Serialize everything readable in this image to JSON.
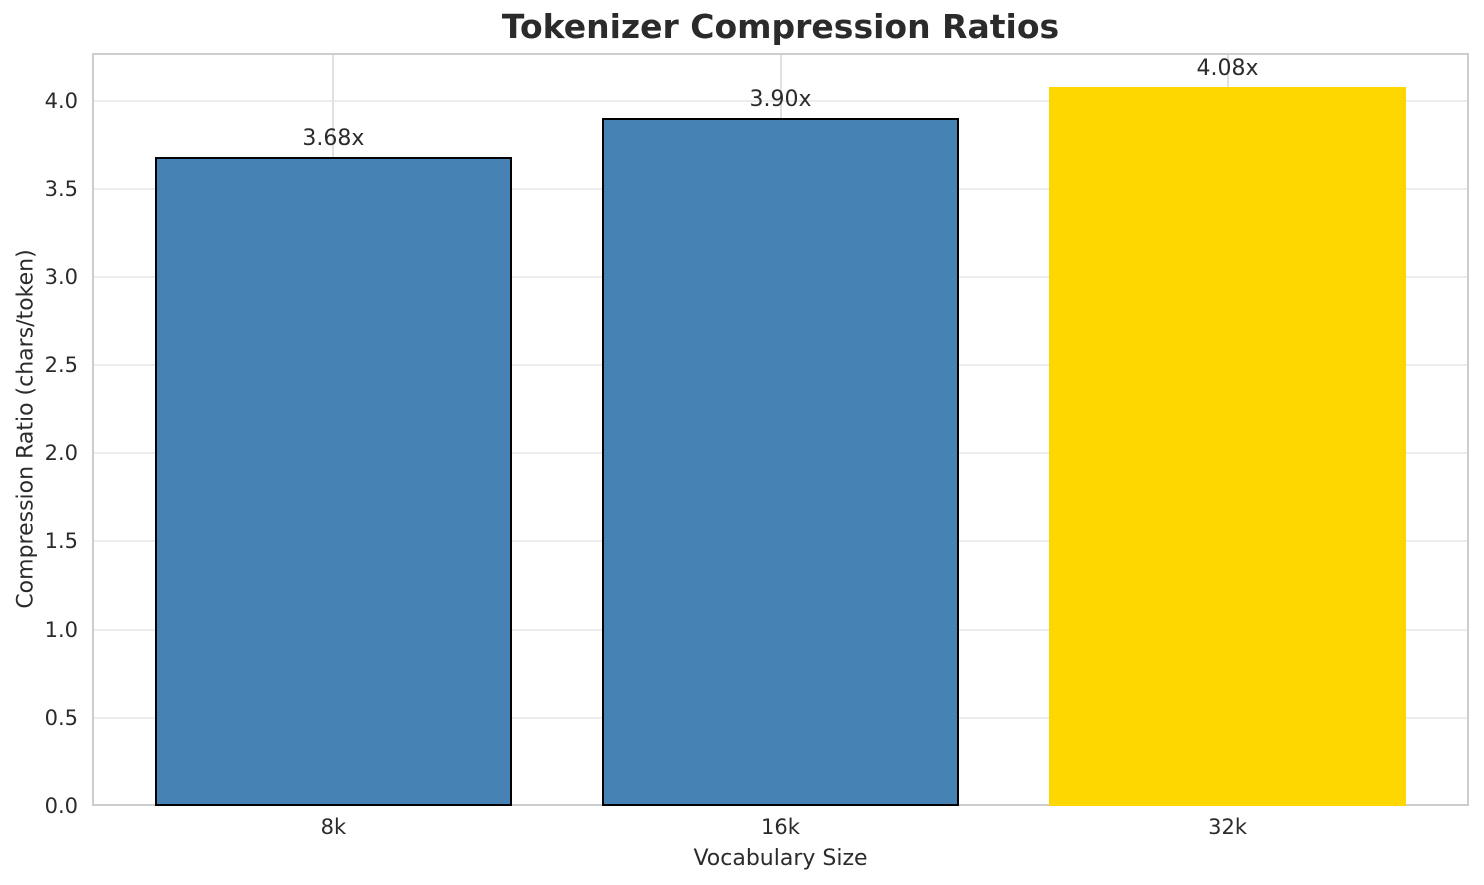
{
  "chart_data": {
    "type": "bar",
    "title": "Tokenizer Compression Ratios",
    "xlabel": "Vocabulary Size",
    "ylabel": "Compression Ratio (chars/token)",
    "categories": [
      "8k",
      "16k",
      "32k"
    ],
    "values": [
      3.68,
      3.9,
      4.08
    ],
    "value_labels": [
      "3.68x",
      "3.90x",
      "4.08x"
    ],
    "bar_colors": [
      "#4682B4",
      "#4682B4",
      "#FFD700"
    ],
    "bar_edge_colors": [
      "#000000",
      "#000000",
      null
    ],
    "yticks": [
      0.0,
      0.5,
      1.0,
      1.5,
      2.0,
      2.5,
      3.0,
      3.5,
      4.0
    ],
    "ytick_labels": [
      "0.0",
      "0.5",
      "1.0",
      "1.5",
      "2.0",
      "2.5",
      "3.0",
      "3.5",
      "4.0"
    ],
    "ylim": [
      0,
      4.27
    ],
    "xlim": [
      -0.54,
      2.54
    ],
    "bar_width_units": 0.8,
    "grid": true,
    "legend": "none",
    "colors": {
      "grid_h": "#ececec",
      "grid_v": "#e0e0e0",
      "spine": "#cdcdcd",
      "text": "#2b2b2b",
      "background": "#ffffff"
    }
  }
}
